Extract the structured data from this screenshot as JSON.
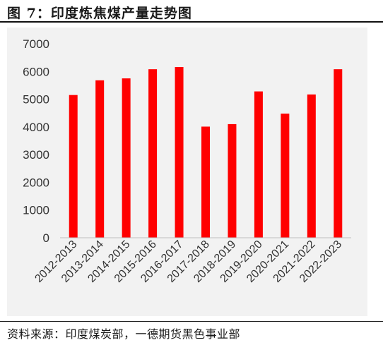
{
  "figure": {
    "title": "图 7：印度炼焦煤产量走势图",
    "source": "资料来源：印度煤炭部，一德期货黑色事业部"
  },
  "colors": {
    "bar": "#ff0000",
    "plot_background": "#f2f2f2",
    "axis": "#bfbfbf"
  },
  "chart_data": {
    "type": "bar",
    "categories": [
      "2012-2013",
      "2013-2014",
      "2014-2015",
      "2015-2016",
      "2016-2017",
      "2017-2018",
      "2018-2019",
      "2019-2020",
      "2020-2021",
      "2021-2022",
      "2022-2023"
    ],
    "values": [
      5150,
      5680,
      5750,
      6080,
      6160,
      4010,
      4100,
      5280,
      4480,
      5170,
      6080
    ],
    "yticks": [
      0,
      1000,
      2000,
      3000,
      4000,
      5000,
      6000,
      7000
    ],
    "ylim": [
      0,
      7000
    ],
    "grid": false,
    "legend": "none"
  }
}
